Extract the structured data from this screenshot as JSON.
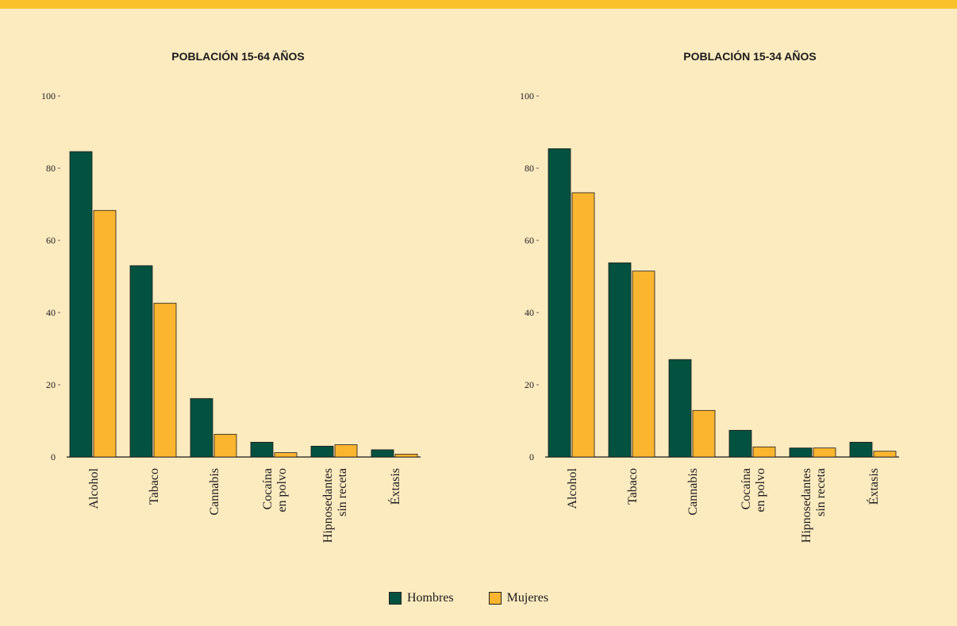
{
  "legend": {
    "items": [
      {
        "label": "Hombres",
        "color": "#03523f"
      },
      {
        "label": "Mujeres",
        "color": "#fbb52f"
      }
    ]
  },
  "chart_data": [
    {
      "type": "bar",
      "title": "POBLACIÓN 15-64 AÑOS",
      "categories": [
        [
          "Alcohol"
        ],
        [
          "Tabaco"
        ],
        [
          "Cannabis"
        ],
        [
          "Cocaína",
          "en polvo"
        ],
        [
          "Hipnosedantes",
          "sin receta"
        ],
        [
          "Éxtasis"
        ]
      ],
      "yticks": [
        "0",
        "20",
        "40",
        "60",
        "80",
        "100"
      ],
      "ylim": [
        0,
        100
      ],
      "series": [
        {
          "name": "Hombres",
          "values": [
            84.6,
            53.0,
            16.2,
            4.1,
            3.0,
            2.0
          ]
        },
        {
          "name": "Mujeres",
          "values": [
            68.3,
            42.6,
            6.3,
            1.2,
            3.4,
            0.8
          ]
        }
      ]
    },
    {
      "type": "bar",
      "title": "POBLACIÓN 15-34 AÑOS",
      "categories": [
        [
          "Alcohol"
        ],
        [
          "Tabaco"
        ],
        [
          "Cannabis"
        ],
        [
          "Cocaína",
          "en polvo"
        ],
        [
          "Hipnosedantes",
          "sin receta"
        ],
        [
          "Éxtasis"
        ]
      ],
      "yticks": [
        "0",
        "20",
        "40",
        "60",
        "80",
        "100"
      ],
      "ylim": [
        0,
        100
      ],
      "series": [
        {
          "name": "Hombres",
          "values": [
            85.4,
            53.8,
            27.0,
            7.4,
            2.5,
            4.1
          ]
        },
        {
          "name": "Mujeres",
          "values": [
            73.2,
            51.5,
            12.9,
            2.8,
            2.5,
            1.6
          ]
        }
      ]
    }
  ]
}
